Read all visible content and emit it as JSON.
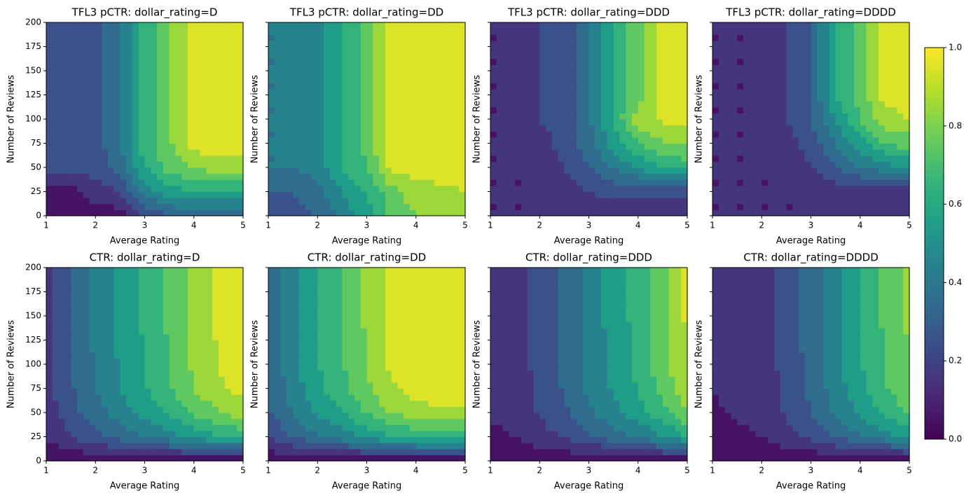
{
  "chart_data": [
    {
      "type": "contour",
      "title": "TFL3 pCTR: dollar_rating=D",
      "xlabel": "Average Rating",
      "ylabel": "Number of Reviews",
      "x": [
        1,
        1.5,
        2,
        2.5,
        3,
        3.5,
        4,
        4.5,
        5
      ],
      "y": [
        0,
        25,
        50,
        75,
        100,
        125,
        150,
        175,
        200
      ],
      "z": [
        [
          0.05,
          0.05,
          0.05,
          0.05,
          0.2,
          0.3,
          0.3,
          0.3,
          0.3
        ],
        [
          0.05,
          0.05,
          0.15,
          0.2,
          0.45,
          0.55,
          0.6,
          0.6,
          0.6
        ],
        [
          0.25,
          0.25,
          0.25,
          0.35,
          0.6,
          0.75,
          0.8,
          0.85,
          0.85
        ],
        [
          0.25,
          0.25,
          0.25,
          0.4,
          0.65,
          0.78,
          0.95,
          0.95,
          0.95
        ],
        [
          0.25,
          0.25,
          0.25,
          0.4,
          0.65,
          0.78,
          0.95,
          0.95,
          0.95
        ],
        [
          0.25,
          0.25,
          0.25,
          0.4,
          0.65,
          0.78,
          0.95,
          0.95,
          0.95
        ],
        [
          0.25,
          0.25,
          0.25,
          0.4,
          0.65,
          0.78,
          0.95,
          0.95,
          0.95
        ],
        [
          0.25,
          0.25,
          0.25,
          0.4,
          0.65,
          0.78,
          0.95,
          0.95,
          0.95
        ],
        [
          0.25,
          0.25,
          0.25,
          0.4,
          0.65,
          0.78,
          0.95,
          0.95,
          0.95
        ]
      ],
      "xlim": [
        1,
        5
      ],
      "ylim": [
        0,
        200
      ],
      "xticks": [
        1,
        2,
        3,
        4,
        5
      ],
      "yticks": [
        0,
        25,
        50,
        75,
        100,
        125,
        150,
        175,
        200
      ],
      "ytick_labels": true
    },
    {
      "type": "contour",
      "title": "TFL3 pCTR: dollar_rating=DD",
      "xlabel": "Average Rating",
      "ylabel": "Number of Reviews",
      "x": [
        1,
        1.5,
        2,
        2.5,
        3,
        3.5,
        4,
        4.5,
        5
      ],
      "y": [
        0,
        25,
        50,
        75,
        100,
        125,
        150,
        175,
        200
      ],
      "z": [
        [
          0.25,
          0.25,
          0.3,
          0.45,
          0.55,
          0.75,
          0.8,
          0.8,
          0.8
        ],
        [
          0.3,
          0.3,
          0.35,
          0.5,
          0.6,
          0.75,
          0.85,
          0.88,
          0.9
        ],
        [
          0.4,
          0.4,
          0.45,
          0.6,
          0.7,
          0.95,
          0.95,
          0.95,
          0.95
        ],
        [
          0.4,
          0.4,
          0.45,
          0.62,
          0.72,
          0.95,
          0.95,
          0.95,
          0.95
        ],
        [
          0.4,
          0.4,
          0.45,
          0.62,
          0.72,
          0.95,
          0.95,
          0.95,
          0.95
        ],
        [
          0.4,
          0.4,
          0.45,
          0.62,
          0.72,
          0.95,
          0.95,
          0.95,
          0.95
        ],
        [
          0.4,
          0.4,
          0.45,
          0.62,
          0.72,
          0.95,
          0.95,
          0.95,
          0.95
        ],
        [
          0.4,
          0.4,
          0.45,
          0.62,
          0.72,
          0.95,
          0.95,
          0.95,
          0.95
        ],
        [
          0.4,
          0.4,
          0.45,
          0.62,
          0.72,
          0.95,
          0.95,
          0.95,
          0.95
        ]
      ],
      "xlim": [
        1,
        5
      ],
      "ylim": [
        0,
        200
      ],
      "xticks": [
        1,
        2,
        3,
        4,
        5
      ],
      "yticks": [
        0,
        25,
        50,
        75,
        100,
        125,
        150,
        175,
        200
      ],
      "ytick_labels": false
    },
    {
      "type": "contour",
      "title": "TFL3 pCTR: dollar_rating=DDD",
      "xlabel": "Average Rating",
      "ylabel": "Number of Reviews",
      "x": [
        1,
        1.5,
        2,
        2.5,
        3,
        3.5,
        4,
        4.5,
        5
      ],
      "y": [
        0,
        25,
        50,
        75,
        100,
        125,
        150,
        175,
        200
      ],
      "z": [
        [
          0.1,
          0.1,
          0.1,
          0.1,
          0.1,
          0.1,
          0.1,
          0.1,
          0.1
        ],
        [
          0.1,
          0.1,
          0.1,
          0.15,
          0.2,
          0.25,
          0.25,
          0.25,
          0.25
        ],
        [
          0.1,
          0.1,
          0.1,
          0.2,
          0.3,
          0.4,
          0.5,
          0.6,
          0.65
        ],
        [
          0.1,
          0.1,
          0.15,
          0.25,
          0.35,
          0.55,
          0.7,
          0.78,
          0.8
        ],
        [
          0.1,
          0.1,
          0.2,
          0.25,
          0.38,
          0.62,
          0.85,
          0.92,
          0.95
        ],
        [
          0.1,
          0.1,
          0.2,
          0.25,
          0.38,
          0.62,
          0.75,
          0.95,
          0.95
        ],
        [
          0.1,
          0.1,
          0.2,
          0.25,
          0.38,
          0.62,
          0.75,
          0.95,
          0.95
        ],
        [
          0.1,
          0.1,
          0.2,
          0.25,
          0.38,
          0.62,
          0.75,
          0.95,
          0.95
        ],
        [
          0.1,
          0.1,
          0.2,
          0.25,
          0.38,
          0.62,
          0.75,
          0.95,
          0.95
        ]
      ],
      "xlim": [
        1,
        5
      ],
      "ylim": [
        0,
        200
      ],
      "xticks": [
        1,
        2,
        3,
        4,
        5
      ],
      "yticks": [
        0,
        25,
        50,
        75,
        100,
        125,
        150,
        175,
        200
      ],
      "ytick_labels": false
    },
    {
      "type": "contour",
      "title": "TFL3 pCTR: dollar_rating=DDDD",
      "xlabel": "Average Rating",
      "ylabel": "Number of Reviews",
      "x": [
        1,
        1.5,
        2,
        2.5,
        3,
        3.5,
        4,
        4.5,
        5
      ],
      "y": [
        0,
        25,
        50,
        75,
        100,
        125,
        150,
        175,
        200
      ],
      "z": [
        [
          0.1,
          0.1,
          0.1,
          0.1,
          0.1,
          0.1,
          0.1,
          0.1,
          0.1
        ],
        [
          0.1,
          0.1,
          0.1,
          0.1,
          0.1,
          0.15,
          0.15,
          0.15,
          0.15
        ],
        [
          0.1,
          0.1,
          0.1,
          0.1,
          0.2,
          0.3,
          0.4,
          0.45,
          0.5
        ],
        [
          0.1,
          0.1,
          0.1,
          0.15,
          0.25,
          0.4,
          0.55,
          0.7,
          0.75
        ],
        [
          0.1,
          0.1,
          0.1,
          0.2,
          0.3,
          0.5,
          0.7,
          0.85,
          0.9
        ],
        [
          0.1,
          0.1,
          0.1,
          0.2,
          0.3,
          0.6,
          0.75,
          0.95,
          0.95
        ],
        [
          0.1,
          0.1,
          0.1,
          0.2,
          0.3,
          0.6,
          0.75,
          0.95,
          0.95
        ],
        [
          0.1,
          0.1,
          0.1,
          0.2,
          0.3,
          0.6,
          0.75,
          0.95,
          0.95
        ],
        [
          0.1,
          0.1,
          0.1,
          0.2,
          0.3,
          0.6,
          0.75,
          0.95,
          0.95
        ]
      ],
      "xlim": [
        1,
        5
      ],
      "ylim": [
        0,
        200
      ],
      "xticks": [
        1,
        2,
        3,
        4,
        5
      ],
      "yticks": [
        0,
        25,
        50,
        75,
        100,
        125,
        150,
        175,
        200
      ],
      "ytick_labels": false
    },
    {
      "type": "contour",
      "title": "CTR: dollar_rating=D",
      "xlabel": "Average Rating",
      "ylabel": "Number of Reviews",
      "x": [
        1,
        1.5,
        2,
        2.5,
        3,
        3.5,
        4,
        4.5,
        5
      ],
      "y": [
        0,
        25,
        50,
        75,
        100,
        125,
        150,
        175,
        200
      ],
      "z": [
        [
          0.02,
          0.02,
          0.02,
          0.02,
          0.02,
          0.02,
          0.02,
          0.02,
          0.02
        ],
        [
          0.11,
          0.2,
          0.27,
          0.34,
          0.4,
          0.46,
          0.54,
          0.59,
          0.63
        ],
        [
          0.15,
          0.26,
          0.36,
          0.45,
          0.54,
          0.62,
          0.73,
          0.79,
          0.85
        ],
        [
          0.16,
          0.29,
          0.4,
          0.5,
          0.59,
          0.69,
          0.8,
          0.88,
          0.94
        ],
        [
          0.17,
          0.29,
          0.41,
          0.51,
          0.61,
          0.71,
          0.82,
          0.9,
          0.97
        ],
        [
          0.17,
          0.3,
          0.42,
          0.52,
          0.61,
          0.71,
          0.83,
          0.91,
          0.98
        ],
        [
          0.17,
          0.3,
          0.42,
          0.52,
          0.62,
          0.72,
          0.84,
          0.92,
          0.99
        ],
        [
          0.17,
          0.3,
          0.42,
          0.52,
          0.62,
          0.72,
          0.84,
          0.92,
          0.99
        ],
        [
          0.17,
          0.3,
          0.42,
          0.52,
          0.62,
          0.72,
          0.84,
          0.92,
          0.99
        ]
      ],
      "xlim": [
        1,
        5
      ],
      "ylim": [
        0,
        200
      ],
      "xticks": [
        1,
        2,
        3,
        4,
        5
      ],
      "yticks": [
        0,
        25,
        50,
        75,
        100,
        125,
        150,
        175,
        200
      ],
      "ytick_labels": true
    },
    {
      "type": "contour",
      "title": "CTR: dollar_rating=DD",
      "xlabel": "Average Rating",
      "ylabel": "Number of Reviews",
      "x": [
        1,
        1.5,
        2,
        2.5,
        3,
        3.5,
        4,
        4.5,
        5
      ],
      "y": [
        0,
        25,
        50,
        75,
        100,
        125,
        150,
        175,
        200
      ],
      "z": [
        [
          0.02,
          0.02,
          0.02,
          0.02,
          0.02,
          0.02,
          0.02,
          0.02,
          0.02
        ],
        [
          0.21,
          0.3,
          0.39,
          0.45,
          0.52,
          0.6,
          0.63,
          0.65,
          0.65
        ],
        [
          0.28,
          0.41,
          0.52,
          0.6,
          0.71,
          0.81,
          0.85,
          0.88,
          0.88
        ],
        [
          0.31,
          0.45,
          0.57,
          0.67,
          0.78,
          0.89,
          0.94,
          0.97,
          0.97
        ],
        [
          0.31,
          0.46,
          0.59,
          0.69,
          0.8,
          0.92,
          0.97,
          1,
          1
        ],
        [
          0.32,
          0.47,
          0.59,
          0.69,
          0.81,
          0.93,
          0.98,
          1,
          1
        ],
        [
          0.32,
          0.47,
          0.6,
          0.7,
          0.82,
          0.94,
          0.99,
          1,
          1
        ],
        [
          0.32,
          0.47,
          0.6,
          0.7,
          0.82,
          0.94,
          0.99,
          1,
          1
        ],
        [
          0.32,
          0.47,
          0.6,
          0.7,
          0.82,
          0.94,
          0.99,
          1,
          1
        ]
      ],
      "xlim": [
        1,
        5
      ],
      "ylim": [
        0,
        200
      ],
      "xticks": [
        1,
        2,
        3,
        4,
        5
      ],
      "yticks": [
        0,
        25,
        50,
        75,
        100,
        125,
        150,
        175,
        200
      ],
      "ytick_labels": false
    },
    {
      "type": "contour",
      "title": "CTR: dollar_rating=DDD",
      "xlabel": "Average Rating",
      "ylabel": "Number of Reviews",
      "x": [
        1,
        1.5,
        2,
        2.5,
        3,
        3.5,
        4,
        4.5,
        5
      ],
      "y": [
        0,
        25,
        50,
        75,
        100,
        125,
        150,
        175,
        200
      ],
      "z": [
        [
          0.02,
          0.02,
          0.02,
          0.02,
          0.02,
          0.02,
          0.02,
          0.02,
          0.02
        ],
        [
          0.08,
          0.1,
          0.16,
          0.21,
          0.28,
          0.35,
          0.41,
          0.49,
          0.59
        ],
        [
          0.11,
          0.12,
          0.21,
          0.28,
          0.38,
          0.47,
          0.55,
          0.67,
          0.79
        ],
        [
          0.12,
          0.13,
          0.23,
          0.31,
          0.42,
          0.51,
          0.61,
          0.73,
          0.88
        ],
        [
          0.12,
          0.14,
          0.24,
          0.31,
          0.43,
          0.53,
          0.63,
          0.76,
          0.9
        ],
        [
          0.12,
          0.14,
          0.24,
          0.32,
          0.44,
          0.53,
          0.63,
          0.76,
          0.91
        ],
        [
          0.12,
          0.14,
          0.24,
          0.32,
          0.44,
          0.54,
          0.64,
          0.77,
          0.92
        ],
        [
          0.12,
          0.14,
          0.24,
          0.32,
          0.44,
          0.54,
          0.64,
          0.77,
          0.92
        ],
        [
          0.12,
          0.14,
          0.24,
          0.32,
          0.44,
          0.54,
          0.64,
          0.77,
          0.92
        ]
      ],
      "xlim": [
        1,
        5
      ],
      "ylim": [
        0,
        200
      ],
      "xticks": [
        1,
        2,
        3,
        4,
        5
      ],
      "yticks": [
        0,
        25,
        50,
        75,
        100,
        125,
        150,
        175,
        200
      ],
      "ytick_labels": false
    },
    {
      "type": "contour",
      "title": "CTR: dollar_rating=DDDD",
      "xlabel": "Average Rating",
      "ylabel": "Number of Reviews",
      "x": [
        1,
        1.5,
        2,
        2.5,
        3,
        3.5,
        4,
        4.5,
        5
      ],
      "y": [
        0,
        25,
        50,
        75,
        100,
        125,
        150,
        175,
        200
      ],
      "z": [
        [
          0.02,
          0.02,
          0.02,
          0.02,
          0.02,
          0.02,
          0.02,
          0.02,
          0.02
        ],
        [
          0.07,
          0.08,
          0.1,
          0.16,
          0.22,
          0.3,
          0.39,
          0.46,
          0.52
        ],
        [
          0.09,
          0.11,
          0.12,
          0.21,
          0.3,
          0.41,
          0.52,
          0.62,
          0.71
        ],
        [
          0.1,
          0.12,
          0.13,
          0.23,
          0.32,
          0.45,
          0.57,
          0.69,
          0.78
        ],
        [
          0.1,
          0.12,
          0.14,
          0.24,
          0.33,
          0.46,
          0.59,
          0.71,
          0.8
        ],
        [
          0.1,
          0.12,
          0.14,
          0.24,
          0.34,
          0.47,
          0.59,
          0.71,
          0.81
        ],
        [
          0.1,
          0.12,
          0.14,
          0.24,
          0.34,
          0.47,
          0.6,
          0.72,
          0.82
        ],
        [
          0.1,
          0.12,
          0.14,
          0.24,
          0.34,
          0.47,
          0.6,
          0.72,
          0.82
        ],
        [
          0.1,
          0.12,
          0.14,
          0.24,
          0.34,
          0.47,
          0.6,
          0.72,
          0.82
        ]
      ],
      "xlim": [
        1,
        5
      ],
      "ylim": [
        0,
        200
      ],
      "xticks": [
        1,
        2,
        3,
        4,
        5
      ],
      "yticks": [
        0,
        25,
        50,
        75,
        100,
        125,
        150,
        175,
        200
      ],
      "ytick_labels": false
    }
  ],
  "colorbar": {
    "colormap": "viridis",
    "levels": [
      0,
      0.1,
      0.2,
      0.3,
      0.4,
      0.5,
      0.6,
      0.7,
      0.8,
      0.9,
      1
    ],
    "ylim": [
      0,
      1
    ],
    "yticks": [
      {
        "value": 0,
        "label": "0.0"
      },
      0.2,
      0.4,
      0.6,
      0.8,
      {
        "value": 1,
        "label": "1.0"
      }
    ]
  }
}
